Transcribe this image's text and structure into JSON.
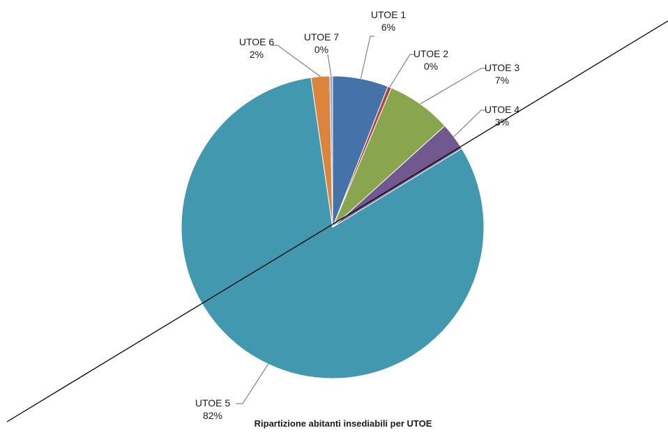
{
  "chart_data": {
    "type": "pie",
    "title": "Ripartizione abitanti insediabili per UTOE",
    "labels": [
      "UTOE 1",
      "UTOE 2",
      "UTOE 3",
      "UTOE 4",
      "UTOE 5",
      "UTOE 6",
      "UTOE 7"
    ],
    "values": [
      6,
      0.4,
      7,
      3,
      82,
      2,
      0.3
    ],
    "value_labels": [
      "6%",
      "0%",
      "7%",
      "3%",
      "82%",
      "2%",
      "0%"
    ],
    "colors": [
      "#4572a7",
      "#aa4643",
      "#89a54e",
      "#71588f",
      "#4198af",
      "#db843d",
      "#93a9cf"
    ],
    "start_angle_deg": 90,
    "direction": "clockwise",
    "legend": "none"
  }
}
